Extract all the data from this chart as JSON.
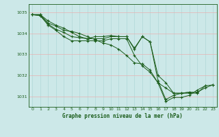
{
  "title": "Graphe pression niveau de la mer (hPa)",
  "bg_color": "#cce8e8",
  "grid_color": "#b0d8d8",
  "line_color": "#1a5c1a",
  "xlim": [
    -0.5,
    23.5
  ],
  "ylim": [
    1030.5,
    1035.4
  ],
  "xticks": [
    0,
    1,
    2,
    3,
    4,
    5,
    6,
    7,
    8,
    9,
    10,
    11,
    12,
    13,
    14,
    15,
    16,
    17,
    18,
    19,
    20,
    21,
    22,
    23
  ],
  "yticks": [
    1031,
    1032,
    1033,
    1034,
    1035
  ],
  "series": [
    {
      "x": [
        0,
        1,
        2,
        3,
        4,
        5,
        6,
        7,
        8,
        9,
        10,
        11,
        12,
        13,
        14,
        15,
        16,
        17,
        18,
        19,
        20,
        21,
        22,
        23
      ],
      "y": [
        1034.9,
        1034.9,
        1034.5,
        1034.35,
        1034.15,
        1034.1,
        1034.0,
        1033.85,
        1033.7,
        1033.55,
        1033.45,
        1033.25,
        1032.95,
        1032.6,
        1032.55,
        1032.25,
        1031.65,
        1031.4,
        1031.15,
        1031.15,
        1031.2,
        1031.2,
        1031.4,
        1031.55
      ]
    },
    {
      "x": [
        0,
        1,
        2,
        3,
        4,
        5,
        6,
        7,
        8,
        9,
        10,
        11,
        12,
        13,
        14,
        15,
        16,
        17,
        18,
        19,
        20,
        21,
        22
      ],
      "y": [
        1034.9,
        1034.9,
        1034.6,
        1034.4,
        1034.25,
        1034.05,
        1033.85,
        1033.75,
        1033.85,
        1033.85,
        1033.9,
        1033.85,
        1033.85,
        1033.3,
        1033.85,
        1033.6,
        1032.0,
        1031.65,
        1031.15,
        1031.15,
        1031.15,
        1031.15,
        1031.5
      ]
    },
    {
      "x": [
        0,
        1,
        2,
        3,
        4,
        5,
        6,
        7,
        8,
        9,
        10,
        11,
        12,
        13,
        14,
        15,
        16,
        17,
        18,
        19,
        20,
        21
      ],
      "y": [
        1034.9,
        1034.85,
        1034.45,
        1034.2,
        1034.05,
        1033.85,
        1033.8,
        1033.75,
        1033.75,
        1033.75,
        1033.85,
        1033.85,
        1033.85,
        1033.25,
        1033.85,
        1033.6,
        1031.75,
        1030.85,
        1031.05,
        1031.15,
        1031.2,
        1031.2
      ]
    },
    {
      "x": [
        0,
        1,
        2,
        3,
        4,
        5,
        6,
        7,
        8,
        9,
        10,
        11,
        12,
        13,
        14,
        15,
        16,
        17,
        18,
        19,
        20,
        21,
        22,
        23
      ],
      "y": [
        1034.9,
        1034.85,
        1034.4,
        1034.15,
        1033.85,
        1033.65,
        1033.65,
        1033.65,
        1033.65,
        1033.65,
        1033.75,
        1033.75,
        1033.75,
        1032.95,
        1032.45,
        1032.15,
        1031.65,
        1030.75,
        1030.95,
        1030.95,
        1031.05,
        1031.3,
        1031.5,
        1031.55
      ]
    }
  ]
}
